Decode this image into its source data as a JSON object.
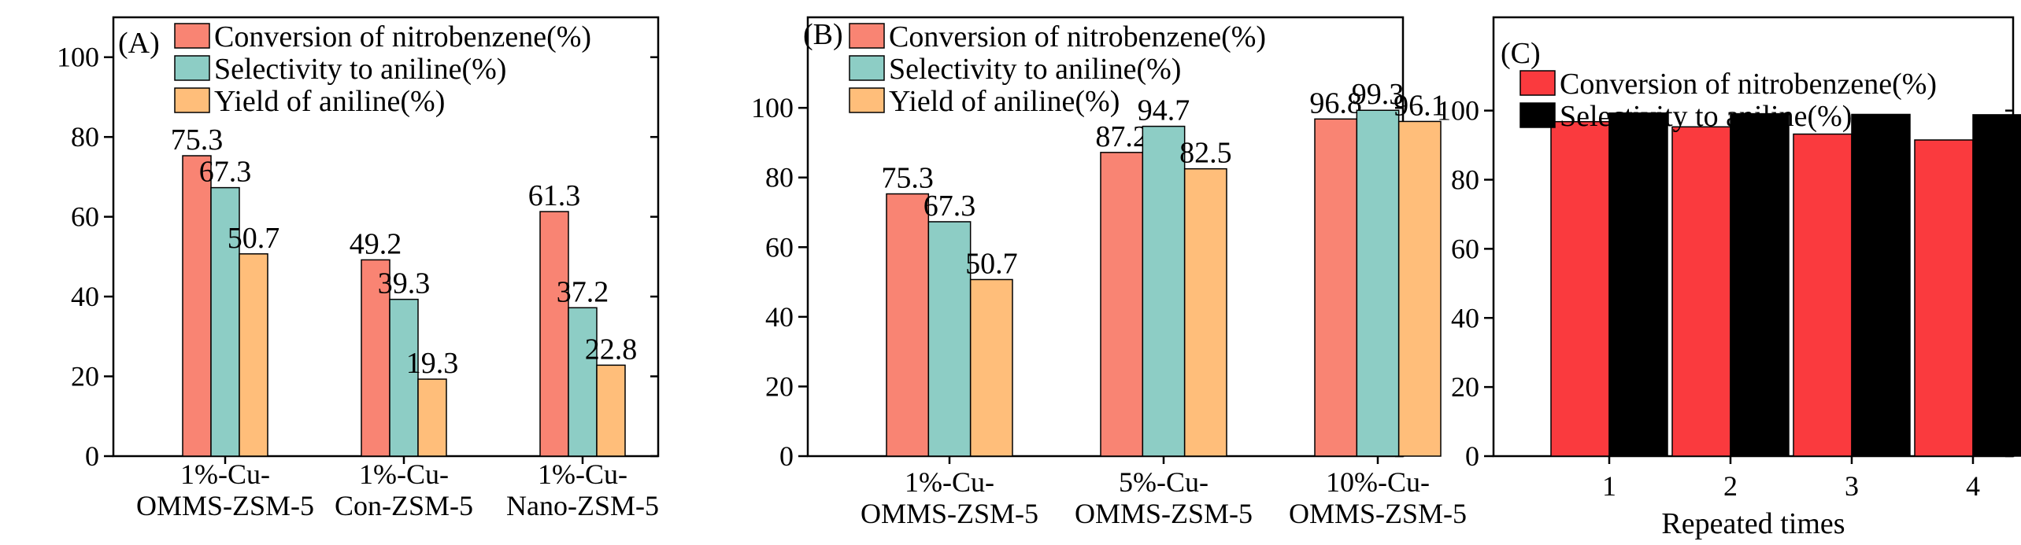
{
  "chart_data": [
    {
      "type": "bar",
      "panel_label": "(A)",
      "categories": [
        [
          "1%-Cu-",
          "OMMS-ZSM-5"
        ],
        [
          "1%-Cu-",
          "Con-ZSM-5"
        ],
        [
          "1%-Cu-",
          "Nano-ZSM-5"
        ]
      ],
      "series": [
        {
          "name": "Conversion of nitrobenzene(%)",
          "color": "#f98473",
          "values": [
            75.3,
            49.2,
            61.3
          ],
          "labels": [
            "75.3",
            "49.2",
            "61.3"
          ]
        },
        {
          "name": "Selectivity to aniline(%)",
          "color": "#8dcdc5",
          "values": [
            67.3,
            39.3,
            37.2
          ],
          "labels": [
            "67.3",
            "39.3",
            "37.2"
          ]
        },
        {
          "name": "Yield of aniline(%)",
          "color": "#ffbe7a",
          "values": [
            50.7,
            19.3,
            22.8
          ],
          "labels": [
            "50.7",
            "19.3",
            "22.8"
          ]
        }
      ],
      "yticks": [
        "0",
        "20",
        "40",
        "60",
        "80",
        "100"
      ],
      "ylim": [
        0,
        110
      ],
      "xlabel": "",
      "ylabel": "",
      "legend": "top-left"
    },
    {
      "type": "bar",
      "panel_label": "(B)",
      "categories": [
        [
          "1%-Cu-",
          "OMMS-ZSM-5"
        ],
        [
          "5%-Cu-",
          "OMMS-ZSM-5"
        ],
        [
          "10%-Cu-",
          "OMMS-ZSM-5"
        ]
      ],
      "series": [
        {
          "name": "Conversion of nitrobenzene(%)",
          "color": "#f98473",
          "values": [
            75.3,
            87.2,
            96.8
          ],
          "labels": [
            "75.3",
            "87.2",
            "96.8"
          ]
        },
        {
          "name": "Selectivity to aniline(%)",
          "color": "#8dcdc5",
          "values": [
            67.3,
            94.7,
            99.3
          ],
          "labels": [
            "67.3",
            "94.7",
            "99.3"
          ]
        },
        {
          "name": "Yield of aniline(%)",
          "color": "#ffbe7a",
          "values": [
            50.7,
            82.5,
            96.1
          ],
          "labels": [
            "50.7",
            "82.5",
            "96.1"
          ]
        }
      ],
      "yticks": [
        "0",
        "20",
        "40",
        "60",
        "80",
        "100"
      ],
      "ylim": [
        0,
        126
      ],
      "xlabel": "",
      "ylabel": "",
      "legend": "top-left"
    },
    {
      "type": "bar",
      "panel_label": "(C)",
      "categories": [
        [
          "1"
        ],
        [
          "2"
        ],
        [
          "3"
        ],
        [
          "4"
        ]
      ],
      "series": [
        {
          "name": "Conversion of nitrobenzene(%)",
          "color": "#fa3a3e",
          "values": [
            96.8,
            95.3,
            93.2,
            91.5
          ],
          "labels": []
        },
        {
          "name": "Selectivity to aniline(%)",
          "color": "#000000",
          "values": [
            99.3,
            99.1,
            98.9,
            98.8
          ],
          "labels": []
        }
      ],
      "yticks": [
        "0",
        "20",
        "40",
        "60",
        "80",
        "100"
      ],
      "ylim": [
        0,
        127
      ],
      "xlabel": "Repeated times",
      "ylabel": "",
      "legend": "top-left"
    }
  ]
}
